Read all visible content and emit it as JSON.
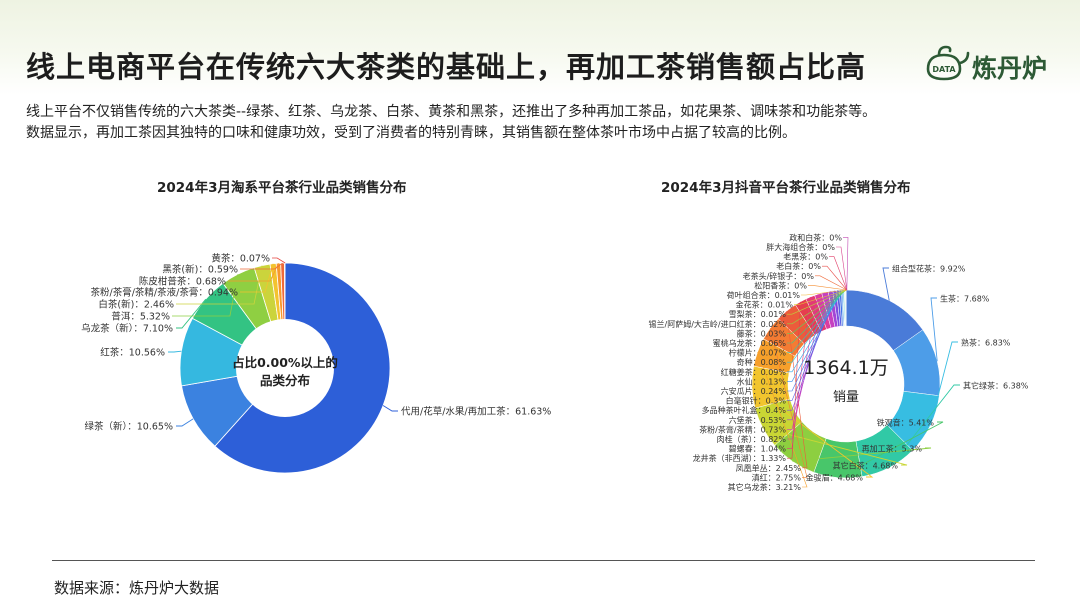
{
  "header": {
    "title": "线上电商平台在传统六大茶类的基础上，再加工茶销售额占比高",
    "logo_badge": "DATA",
    "logo_name": "炼丹炉"
  },
  "intro": {
    "line1": "线上平台不仅销售传统的六大茶类--绿茶、红茶、乌龙茶、白茶、黄茶和黑茶，还推出了多种再加工茶品，如花果茶、调味茶和功能茶等。",
    "line2": "数据显示，再加工茶因其独特的口味和健康功效，受到了消费者的特别青睐，其销售额在整体茶叶市场中占据了较高的比例。"
  },
  "footer": {
    "source": "数据来源：炼丹炉大数据"
  },
  "chart_data": [
    {
      "type": "pie",
      "title": "2024年3月淘系平台茶行业品类销售分布",
      "center_label": [
        "占比0.00%以上的",
        "品类分布"
      ],
      "slices": [
        {
          "label": "代用/花草/水果/再加工茶",
          "value": 61.63,
          "display": "代用/花草/水果/再加工茶：61.63%",
          "color": "#2d5fd8"
        },
        {
          "label": "绿茶（新）",
          "value": 10.65,
          "display": "绿茶（新）：10.65%",
          "color": "#3b82e0"
        },
        {
          "label": "红茶",
          "value": 10.56,
          "display": "红茶：10.56%",
          "color": "#35b8e0"
        },
        {
          "label": "乌龙茶（新）",
          "value": 7.1,
          "display": "乌龙茶（新）：7.10%",
          "color": "#33c383"
        },
        {
          "label": "普洱",
          "value": 5.32,
          "display": "普洱：5.32%",
          "color": "#8fcf42"
        },
        {
          "label": "白茶(新)",
          "value": 2.46,
          "display": "白茶(新)：2.46%",
          "color": "#cbd43c"
        },
        {
          "label": "茶粉/茶膏/茶精/茶液/茶膏",
          "value": 0.94,
          "display": "茶粉/茶膏/茶精/茶液/茶膏：0.94%",
          "color": "#f3c32f"
        },
        {
          "label": "陈皮柑普茶",
          "value": 0.68,
          "display": "陈皮柑普茶：0.68%",
          "color": "#f6982b"
        },
        {
          "label": "黑茶(新)",
          "value": 0.59,
          "display": "黑茶(新)：0.59%",
          "color": "#ee6a3a"
        },
        {
          "label": "黄茶",
          "value": 0.07,
          "display": "黄茶：0.07%",
          "color": "#e5443f"
        }
      ]
    },
    {
      "type": "pie",
      "title": "2024年3月抖音平台茶行业品类销售分布",
      "center_label": [
        "1364.1万",
        "销量"
      ],
      "slices": [
        {
          "label": "组合型花茶",
          "value": 9.92,
          "display": "组合型花茶：9.92%",
          "color": "#4a7bd8"
        },
        {
          "label": "生茶",
          "value": 7.68,
          "display": "生茶：7.68%",
          "color": "#4d9de8"
        },
        {
          "label": "熟茶",
          "value": 6.83,
          "display": "熟茶：6.83%",
          "color": "#37bde2"
        },
        {
          "label": "其它绿茶",
          "value": 6.38,
          "display": "其它绿茶：6.38%",
          "color": "#31c9a6"
        },
        {
          "label": "铁观音",
          "value": 5.41,
          "display": "铁观音：5.41%",
          "color": "#48c66a"
        },
        {
          "label": "再加工茶",
          "value": 5.3,
          "display": "再加工茶：5.3%",
          "color": "#8dcf40"
        },
        {
          "label": "其它白茶",
          "value": 4.68,
          "display": "其它白茶：4.68%",
          "color": "#c9d634"
        },
        {
          "label": "金骏眉",
          "value": 4.68,
          "display": "金骏眉：4.68%",
          "color": "#f2c52e"
        },
        {
          "label": "其它乌龙茶",
          "value": 3.21,
          "display": "其它乌龙茶：3.21%",
          "color": "#f7a02b"
        },
        {
          "label": "滇红",
          "value": 2.75,
          "display": "滇红：2.75%",
          "color": "#f47b33"
        },
        {
          "label": "凤凰单丛",
          "value": 2.45,
          "display": "凤凰单丛：2.45%",
          "color": "#ec5b3b"
        },
        {
          "label": "龙井茶（非西湖）",
          "value": 1.33,
          "display": "龙井茶（非西湖）：1.33%",
          "color": "#e63e4e"
        },
        {
          "label": "碧螺春",
          "value": 1.04,
          "display": "碧螺春：1.04%",
          "color": "#e23a76"
        },
        {
          "label": "肉桂（茶）",
          "value": 0.82,
          "display": "肉桂（茶）：0.82%",
          "color": "#db3d9f"
        },
        {
          "label": "茶粉/茶膏/茶精",
          "value": 0.73,
          "display": "茶粉/茶膏/茶精：0.73%",
          "color": "#c640c0"
        },
        {
          "label": "六堡茶",
          "value": 0.53,
          "display": "六堡茶：0.53%",
          "color": "#a246d6"
        },
        {
          "label": "多品种茶叶礼盒",
          "value": 0.4,
          "display": "多品种茶叶礼盒：0.4%",
          "color": "#7f4fe0"
        },
        {
          "label": "白毫银针",
          "value": 0.3,
          "display": "白毫银针：0.3%",
          "color": "#5b5fe2"
        },
        {
          "label": "六安瓜片",
          "value": 0.24,
          "display": "六安瓜片：0.24%",
          "color": "#4274e6"
        },
        {
          "label": "水仙",
          "value": 0.13,
          "display": "水仙：0.13%",
          "color": "#3a8eea"
        },
        {
          "label": "红糖姜茶",
          "value": 0.09,
          "display": "红糖姜茶：0.09%",
          "color": "#35a9e6"
        },
        {
          "label": "奇种",
          "value": 0.08,
          "display": "奇种：0.08%",
          "color": "#33c1d9"
        },
        {
          "label": "柠檬片",
          "value": 0.07,
          "display": "柠檬片：0.07%",
          "color": "#34c9b2"
        },
        {
          "label": "蜜桃乌龙茶",
          "value": 0.06,
          "display": "蜜桃乌龙茶：0.06%",
          "color": "#42c985"
        },
        {
          "label": "藤茶",
          "value": 0.03,
          "display": "藤茶：0.03%",
          "color": "#66c95c"
        },
        {
          "label": "锡兰/阿萨姆/大吉岭/进口红茶",
          "value": 0.02,
          "display": "锡兰/阿萨姆/大吉岭/进口红茶：0.02%",
          "color": "#93cf44"
        },
        {
          "label": "雪梨茶",
          "value": 0.01,
          "display": "雪梨茶：0.01%",
          "color": "#bcd53a"
        },
        {
          "label": "金花茶",
          "value": 0.01,
          "display": "金花茶：0.01%",
          "color": "#e3d234"
        },
        {
          "label": "荷叶组合茶",
          "value": 0.01,
          "display": "荷叶组合茶：0.01%",
          "color": "#f3b530"
        },
        {
          "label": "松阳香茶",
          "value": 0,
          "display": "松阳香茶：0%",
          "color": "#f48e33"
        },
        {
          "label": "老茶头/碎银子",
          "value": 0,
          "display": "老茶头/碎银子：0%",
          "color": "#ef6b3b"
        },
        {
          "label": "老白茶",
          "value": 0,
          "display": "老白茶：0%",
          "color": "#e84d4a"
        },
        {
          "label": "老黑茶",
          "value": 0,
          "display": "老黑茶：0%",
          "color": "#e2416b"
        },
        {
          "label": "胖大海组合茶",
          "value": 0,
          "display": "胖大海组合茶：0%",
          "color": "#d8448e"
        },
        {
          "label": "政和白茶",
          "value": 0,
          "display": "政和白茶：0%",
          "color": "#c14ab3"
        }
      ]
    }
  ]
}
